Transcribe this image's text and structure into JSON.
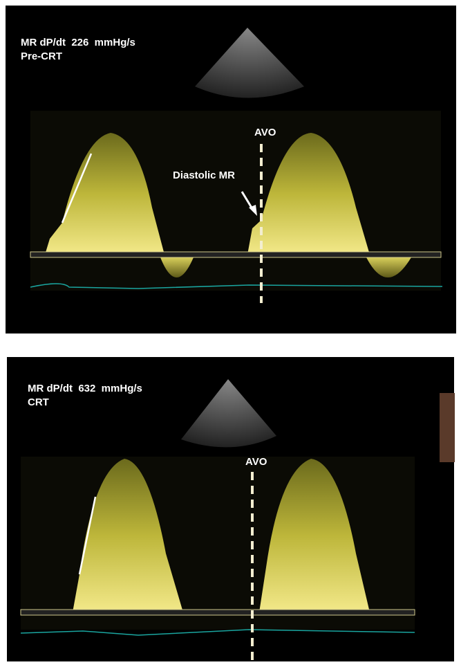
{
  "panels": [
    {
      "title": "MR dP/dt  226  mmHg/s",
      "condition": "Pre-CRT",
      "labels": [
        "AVO",
        "Diastolic MR"
      ]
    },
    {
      "title": "MR dP/dt  632  mmHg/s",
      "condition": "CRT",
      "labels": [
        "AVO"
      ]
    }
  ]
}
